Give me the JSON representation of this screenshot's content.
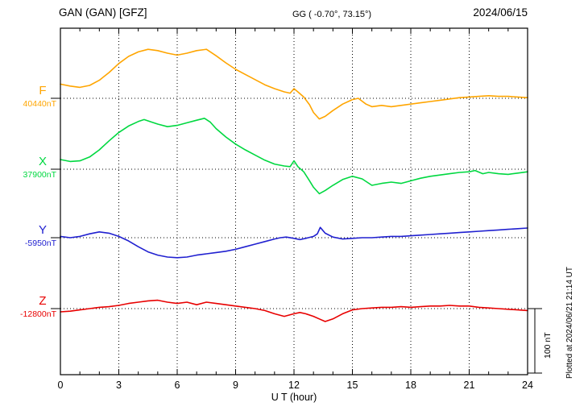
{
  "header": {
    "station": "GAN (GAN)  [GFZ]",
    "coords": "GG ( -0.70°,  73.15°)",
    "date": "2024/06/15"
  },
  "footer": {
    "plotted_at": "Plotted at 2024/06/21 21:14 UT"
  },
  "chart_data": {
    "type": "line",
    "title": "GAN (GAN) [GFZ] magnetogram 2024/06/15",
    "xlabel": "U T (hour)",
    "x_range": [
      0,
      24
    ],
    "x_ticks": [
      0,
      3,
      6,
      9,
      12,
      15,
      18,
      21,
      24
    ],
    "grid": "dotted vertical at 3h intervals, dotted horizontal at each component baseline",
    "legend_position": "left",
    "scale_bar_label": "100 nT",
    "scale_bar_nT": 100,
    "y_unit": "nT offset from component baseline",
    "series": [
      {
        "name": "F",
        "baseline_label": "40440nT",
        "baseline_value": 40440,
        "color": "#ffa500",
        "points": [
          [
            0,
            22
          ],
          [
            0.5,
            19
          ],
          [
            1,
            17
          ],
          [
            1.5,
            20
          ],
          [
            2,
            28
          ],
          [
            2.5,
            40
          ],
          [
            3,
            54
          ],
          [
            3.5,
            65
          ],
          [
            4,
            72
          ],
          [
            4.5,
            76
          ],
          [
            5,
            74
          ],
          [
            5.5,
            70
          ],
          [
            6,
            67
          ],
          [
            6.5,
            70
          ],
          [
            7,
            74
          ],
          [
            7.5,
            76
          ],
          [
            8,
            66
          ],
          [
            8.5,
            55
          ],
          [
            9,
            45
          ],
          [
            9.5,
            37
          ],
          [
            10,
            29
          ],
          [
            10.5,
            21
          ],
          [
            11,
            15
          ],
          [
            11.5,
            10
          ],
          [
            11.8,
            8
          ],
          [
            12,
            15
          ],
          [
            12.2,
            10
          ],
          [
            12.5,
            2
          ],
          [
            12.8,
            -10
          ],
          [
            13,
            -22
          ],
          [
            13.3,
            -32
          ],
          [
            13.6,
            -28
          ],
          [
            14,
            -19
          ],
          [
            14.5,
            -9
          ],
          [
            15,
            -2
          ],
          [
            15.3,
            0
          ],
          [
            15.7,
            -9
          ],
          [
            16,
            -13
          ],
          [
            16.5,
            -11
          ],
          [
            17,
            -13
          ],
          [
            17.5,
            -11
          ],
          [
            18,
            -9
          ],
          [
            18.5,
            -7
          ],
          [
            19,
            -5
          ],
          [
            19.5,
            -3
          ],
          [
            20,
            -1
          ],
          [
            20.5,
            1
          ],
          [
            21,
            2
          ],
          [
            21.5,
            3
          ],
          [
            22,
            4
          ],
          [
            22.5,
            3
          ],
          [
            23,
            3
          ],
          [
            23.5,
            2
          ],
          [
            24,
            1
          ]
        ]
      },
      {
        "name": "X",
        "baseline_label": "37900nT",
        "baseline_value": 37900,
        "color": "#00d840",
        "points": [
          [
            0,
            15
          ],
          [
            0.5,
            12
          ],
          [
            1,
            13
          ],
          [
            1.5,
            19
          ],
          [
            2,
            30
          ],
          [
            2.5,
            44
          ],
          [
            3,
            57
          ],
          [
            3.5,
            67
          ],
          [
            4,
            74
          ],
          [
            4.3,
            77
          ],
          [
            4.7,
            73
          ],
          [
            5,
            70
          ],
          [
            5.5,
            66
          ],
          [
            6,
            68
          ],
          [
            6.5,
            72
          ],
          [
            7,
            76
          ],
          [
            7.4,
            79
          ],
          [
            7.7,
            73
          ],
          [
            8,
            63
          ],
          [
            8.5,
            50
          ],
          [
            9,
            39
          ],
          [
            9.5,
            30
          ],
          [
            10,
            22
          ],
          [
            10.5,
            14
          ],
          [
            11,
            8
          ],
          [
            11.5,
            5
          ],
          [
            11.8,
            4
          ],
          [
            12,
            13
          ],
          [
            12.2,
            4
          ],
          [
            12.5,
            -4
          ],
          [
            12.8,
            -18
          ],
          [
            13,
            -28
          ],
          [
            13.3,
            -38
          ],
          [
            13.6,
            -33
          ],
          [
            14,
            -25
          ],
          [
            14.5,
            -16
          ],
          [
            15,
            -11
          ],
          [
            15.5,
            -15
          ],
          [
            16,
            -25
          ],
          [
            16.5,
            -22
          ],
          [
            17,
            -20
          ],
          [
            17.5,
            -22
          ],
          [
            18,
            -18
          ],
          [
            18.5,
            -14
          ],
          [
            19,
            -11
          ],
          [
            19.5,
            -9
          ],
          [
            20,
            -7
          ],
          [
            20.5,
            -5
          ],
          [
            21,
            -4
          ],
          [
            21.3,
            -2
          ],
          [
            21.7,
            -7
          ],
          [
            22,
            -5
          ],
          [
            22.5,
            -7
          ],
          [
            23,
            -8
          ],
          [
            23.5,
            -6
          ],
          [
            24,
            -4
          ]
        ]
      },
      {
        "name": "Y",
        "baseline_label": "-5950nT",
        "baseline_value": -5950,
        "color": "#2020d0",
        "points": [
          [
            0,
            2
          ],
          [
            0.5,
            0
          ],
          [
            1,
            2
          ],
          [
            1.5,
            6
          ],
          [
            2,
            9
          ],
          [
            2.5,
            7
          ],
          [
            3,
            2
          ],
          [
            3.5,
            -5
          ],
          [
            4,
            -14
          ],
          [
            4.5,
            -22
          ],
          [
            5,
            -27
          ],
          [
            5.5,
            -30
          ],
          [
            6,
            -31
          ],
          [
            6.5,
            -30
          ],
          [
            7,
            -27
          ],
          [
            7.5,
            -25
          ],
          [
            8,
            -23
          ],
          [
            8.5,
            -21
          ],
          [
            9,
            -18
          ],
          [
            9.5,
            -14
          ],
          [
            10,
            -10
          ],
          [
            10.5,
            -6
          ],
          [
            11,
            -2
          ],
          [
            11.3,
            0
          ],
          [
            11.6,
            1
          ],
          [
            12,
            -1
          ],
          [
            12.3,
            -3
          ],
          [
            12.6,
            -1
          ],
          [
            13,
            2
          ],
          [
            13.2,
            6
          ],
          [
            13.35,
            16
          ],
          [
            13.6,
            7
          ],
          [
            14,
            1
          ],
          [
            14.5,
            -2
          ],
          [
            15,
            -1
          ],
          [
            15.5,
            0
          ],
          [
            16,
            0
          ],
          [
            16.5,
            1
          ],
          [
            17,
            2
          ],
          [
            17.5,
            2
          ],
          [
            18,
            3
          ],
          [
            18.5,
            4
          ],
          [
            19,
            5
          ],
          [
            19.5,
            6
          ],
          [
            20,
            7
          ],
          [
            20.5,
            8
          ],
          [
            21,
            9
          ],
          [
            21.5,
            10
          ],
          [
            22,
            11
          ],
          [
            22.5,
            12
          ],
          [
            23,
            13
          ],
          [
            23.5,
            14
          ],
          [
            24,
            15
          ]
        ]
      },
      {
        "name": "Z",
        "baseline_label": "-12800nT",
        "baseline_value": -12800,
        "color": "#e80000",
        "points": [
          [
            0,
            -5
          ],
          [
            0.5,
            -4
          ],
          [
            1,
            -2
          ],
          [
            1.5,
            0
          ],
          [
            2,
            2
          ],
          [
            2.5,
            3
          ],
          [
            3,
            5
          ],
          [
            3.5,
            8
          ],
          [
            4,
            10
          ],
          [
            4.5,
            12
          ],
          [
            5,
            13
          ],
          [
            5.5,
            10
          ],
          [
            6,
            8
          ],
          [
            6.5,
            10
          ],
          [
            7,
            6
          ],
          [
            7.5,
            10
          ],
          [
            8,
            8
          ],
          [
            8.5,
            6
          ],
          [
            9,
            4
          ],
          [
            9.5,
            2
          ],
          [
            10,
            0
          ],
          [
            10.5,
            -3
          ],
          [
            11,
            -8
          ],
          [
            11.5,
            -12
          ],
          [
            12,
            -8
          ],
          [
            12.3,
            -6
          ],
          [
            12.6,
            -8
          ],
          [
            13,
            -12
          ],
          [
            13.3,
            -16
          ],
          [
            13.6,
            -20
          ],
          [
            14,
            -16
          ],
          [
            14.5,
            -8
          ],
          [
            15,
            -2
          ],
          [
            15.5,
            0
          ],
          [
            16,
            1
          ],
          [
            16.5,
            2
          ],
          [
            17,
            2
          ],
          [
            17.5,
            3
          ],
          [
            18,
            2
          ],
          [
            18.5,
            3
          ],
          [
            19,
            4
          ],
          [
            19.5,
            4
          ],
          [
            20,
            5
          ],
          [
            20.5,
            4
          ],
          [
            21,
            4
          ],
          [
            21.5,
            2
          ],
          [
            22,
            1
          ],
          [
            22.5,
            0
          ],
          [
            23,
            -1
          ],
          [
            23.5,
            -2
          ],
          [
            24,
            -3
          ]
        ]
      }
    ]
  }
}
